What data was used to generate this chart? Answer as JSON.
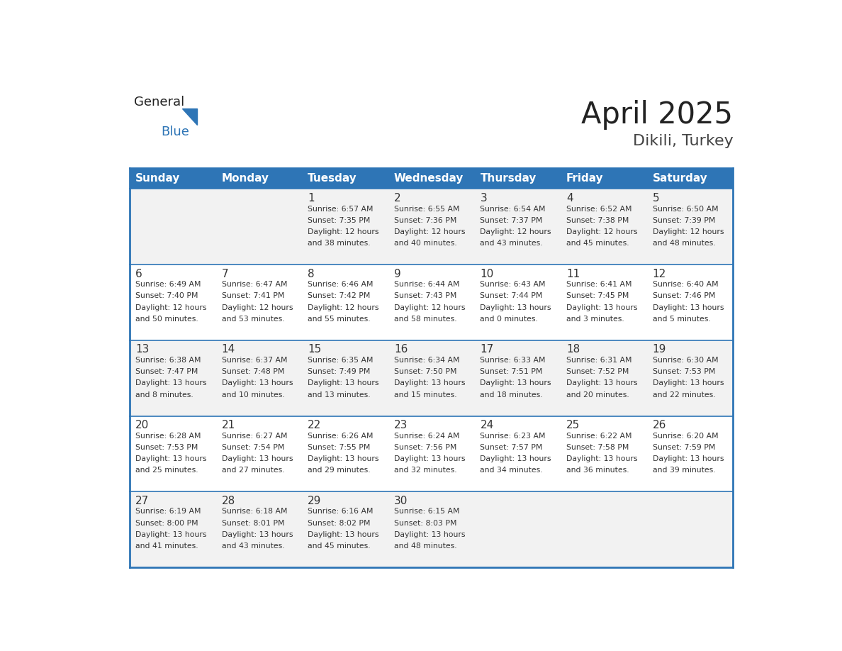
{
  "title": "April 2025",
  "subtitle": "Dikili, Turkey",
  "header_bg": "#2E75B6",
  "header_text_color": "#FFFFFF",
  "weekdays": [
    "Sunday",
    "Monday",
    "Tuesday",
    "Wednesday",
    "Thursday",
    "Friday",
    "Saturday"
  ],
  "row_bg_even": "#F2F2F2",
  "row_bg_odd": "#FFFFFF",
  "cell_border_color": "#2E75B6",
  "text_color": "#333333",
  "days": [
    {
      "day": null,
      "col": 0,
      "row": 0
    },
    {
      "day": null,
      "col": 1,
      "row": 0
    },
    {
      "day": 1,
      "col": 2,
      "row": 0,
      "sunrise": "6:57 AM",
      "sunset": "7:35 PM",
      "daylight": "12 hours and 38 minutes."
    },
    {
      "day": 2,
      "col": 3,
      "row": 0,
      "sunrise": "6:55 AM",
      "sunset": "7:36 PM",
      "daylight": "12 hours and 40 minutes."
    },
    {
      "day": 3,
      "col": 4,
      "row": 0,
      "sunrise": "6:54 AM",
      "sunset": "7:37 PM",
      "daylight": "12 hours and 43 minutes."
    },
    {
      "day": 4,
      "col": 5,
      "row": 0,
      "sunrise": "6:52 AM",
      "sunset": "7:38 PM",
      "daylight": "12 hours and 45 minutes."
    },
    {
      "day": 5,
      "col": 6,
      "row": 0,
      "sunrise": "6:50 AM",
      "sunset": "7:39 PM",
      "daylight": "12 hours and 48 minutes."
    },
    {
      "day": 6,
      "col": 0,
      "row": 1,
      "sunrise": "6:49 AM",
      "sunset": "7:40 PM",
      "daylight": "12 hours and 50 minutes."
    },
    {
      "day": 7,
      "col": 1,
      "row": 1,
      "sunrise": "6:47 AM",
      "sunset": "7:41 PM",
      "daylight": "12 hours and 53 minutes."
    },
    {
      "day": 8,
      "col": 2,
      "row": 1,
      "sunrise": "6:46 AM",
      "sunset": "7:42 PM",
      "daylight": "12 hours and 55 minutes."
    },
    {
      "day": 9,
      "col": 3,
      "row": 1,
      "sunrise": "6:44 AM",
      "sunset": "7:43 PM",
      "daylight": "12 hours and 58 minutes."
    },
    {
      "day": 10,
      "col": 4,
      "row": 1,
      "sunrise": "6:43 AM",
      "sunset": "7:44 PM",
      "daylight": "13 hours and 0 minutes."
    },
    {
      "day": 11,
      "col": 5,
      "row": 1,
      "sunrise": "6:41 AM",
      "sunset": "7:45 PM",
      "daylight": "13 hours and 3 minutes."
    },
    {
      "day": 12,
      "col": 6,
      "row": 1,
      "sunrise": "6:40 AM",
      "sunset": "7:46 PM",
      "daylight": "13 hours and 5 minutes."
    },
    {
      "day": 13,
      "col": 0,
      "row": 2,
      "sunrise": "6:38 AM",
      "sunset": "7:47 PM",
      "daylight": "13 hours and 8 minutes."
    },
    {
      "day": 14,
      "col": 1,
      "row": 2,
      "sunrise": "6:37 AM",
      "sunset": "7:48 PM",
      "daylight": "13 hours and 10 minutes."
    },
    {
      "day": 15,
      "col": 2,
      "row": 2,
      "sunrise": "6:35 AM",
      "sunset": "7:49 PM",
      "daylight": "13 hours and 13 minutes."
    },
    {
      "day": 16,
      "col": 3,
      "row": 2,
      "sunrise": "6:34 AM",
      "sunset": "7:50 PM",
      "daylight": "13 hours and 15 minutes."
    },
    {
      "day": 17,
      "col": 4,
      "row": 2,
      "sunrise": "6:33 AM",
      "sunset": "7:51 PM",
      "daylight": "13 hours and 18 minutes."
    },
    {
      "day": 18,
      "col": 5,
      "row": 2,
      "sunrise": "6:31 AM",
      "sunset": "7:52 PM",
      "daylight": "13 hours and 20 minutes."
    },
    {
      "day": 19,
      "col": 6,
      "row": 2,
      "sunrise": "6:30 AM",
      "sunset": "7:53 PM",
      "daylight": "13 hours and 22 minutes."
    },
    {
      "day": 20,
      "col": 0,
      "row": 3,
      "sunrise": "6:28 AM",
      "sunset": "7:53 PM",
      "daylight": "13 hours and 25 minutes."
    },
    {
      "day": 21,
      "col": 1,
      "row": 3,
      "sunrise": "6:27 AM",
      "sunset": "7:54 PM",
      "daylight": "13 hours and 27 minutes."
    },
    {
      "day": 22,
      "col": 2,
      "row": 3,
      "sunrise": "6:26 AM",
      "sunset": "7:55 PM",
      "daylight": "13 hours and 29 minutes."
    },
    {
      "day": 23,
      "col": 3,
      "row": 3,
      "sunrise": "6:24 AM",
      "sunset": "7:56 PM",
      "daylight": "13 hours and 32 minutes."
    },
    {
      "day": 24,
      "col": 4,
      "row": 3,
      "sunrise": "6:23 AM",
      "sunset": "7:57 PM",
      "daylight": "13 hours and 34 minutes."
    },
    {
      "day": 25,
      "col": 5,
      "row": 3,
      "sunrise": "6:22 AM",
      "sunset": "7:58 PM",
      "daylight": "13 hours and 36 minutes."
    },
    {
      "day": 26,
      "col": 6,
      "row": 3,
      "sunrise": "6:20 AM",
      "sunset": "7:59 PM",
      "daylight": "13 hours and 39 minutes."
    },
    {
      "day": 27,
      "col": 0,
      "row": 4,
      "sunrise": "6:19 AM",
      "sunset": "8:00 PM",
      "daylight": "13 hours and 41 minutes."
    },
    {
      "day": 28,
      "col": 1,
      "row": 4,
      "sunrise": "6:18 AM",
      "sunset": "8:01 PM",
      "daylight": "13 hours and 43 minutes."
    },
    {
      "day": 29,
      "col": 2,
      "row": 4,
      "sunrise": "6:16 AM",
      "sunset": "8:02 PM",
      "daylight": "13 hours and 45 minutes."
    },
    {
      "day": 30,
      "col": 3,
      "row": 4,
      "sunrise": "6:15 AM",
      "sunset": "8:03 PM",
      "daylight": "13 hours and 48 minutes."
    },
    {
      "day": null,
      "col": 4,
      "row": 4
    },
    {
      "day": null,
      "col": 5,
      "row": 4
    },
    {
      "day": null,
      "col": 6,
      "row": 4
    }
  ],
  "num_rows": 5,
  "num_cols": 7,
  "logo_general_color": "#222222",
  "logo_blue_color": "#2E75B6",
  "logo_triangle_color": "#2E75B6"
}
